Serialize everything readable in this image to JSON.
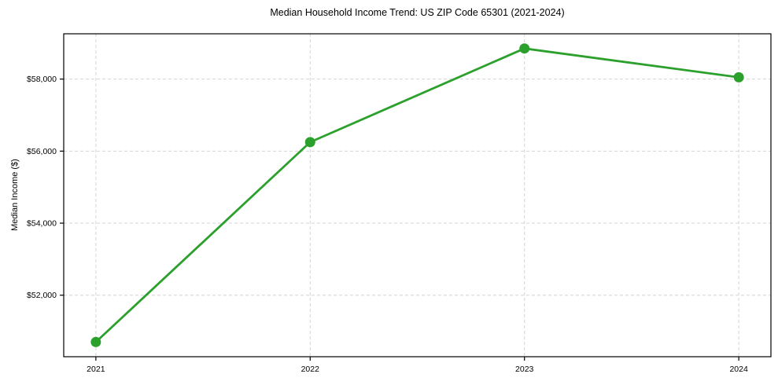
{
  "chart_data": {
    "type": "line",
    "title": "Median Household Income Trend: US ZIP Code 65301 (2021-2024)",
    "xlabel": "",
    "ylabel": "Median Income ($)",
    "x": [
      2021,
      2022,
      2023,
      2024
    ],
    "values": [
      50700,
      56250,
      58850,
      58050
    ],
    "xtick_labels": [
      "2021",
      "2022",
      "2023",
      "2024"
    ],
    "ytick_values": [
      52000,
      54000,
      56000,
      58000
    ],
    "ytick_labels": [
      "$52,000",
      "$54,000",
      "$56,000",
      "$58,000"
    ],
    "xlim": [
      2020.85,
      2024.15
    ],
    "ylim": [
      50292,
      59258
    ],
    "grid": true,
    "grid_linestyle": "dashed",
    "legend": false,
    "line_color": "#2ca02c",
    "marker": "circle",
    "marker_color": "#2ca02c",
    "grid_color": "#d4d4d4",
    "axis_color": "#000000",
    "text_color": "#000000",
    "background": "#ffffff"
  }
}
